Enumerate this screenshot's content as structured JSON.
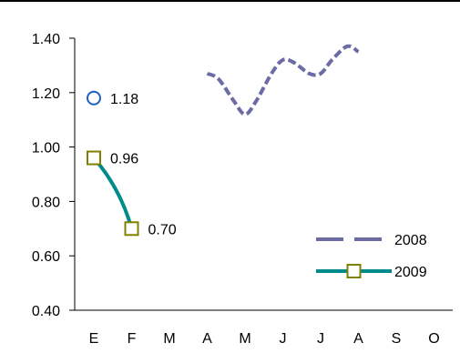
{
  "chart_data": {
    "type": "line",
    "categories": [
      "E",
      "F",
      "M",
      "A",
      "M",
      "J",
      "J",
      "A",
      "S",
      "O"
    ],
    "ylim": [
      0.4,
      1.4
    ],
    "yticks": [
      "0.40",
      "0.60",
      "0.80",
      "1.00",
      "1.20",
      "1.40"
    ],
    "grid": false,
    "legend_position": "bottom-right",
    "series": [
      {
        "name": "2008",
        "style": "dashed",
        "color": "#6b6ba6",
        "x": [
          3,
          3.3,
          3.7,
          4.0,
          4.3,
          4.7,
          5.0,
          5.3,
          5.7,
          6.0,
          6.3,
          6.7,
          7.0
        ],
        "values": [
          1.27,
          1.25,
          1.17,
          1.12,
          1.17,
          1.27,
          1.32,
          1.31,
          1.27,
          1.27,
          1.32,
          1.37,
          1.35
        ]
      },
      {
        "name": "2009",
        "style": "solid",
        "color": "#008b8b",
        "marker": "square",
        "marker_color": "#808000",
        "x": [
          0,
          1
        ],
        "values": [
          0.96,
          0.7
        ],
        "labels": [
          "0.96",
          "0.70"
        ]
      }
    ],
    "extra_points": [
      {
        "x": 0,
        "value": 1.18,
        "label": "1.18",
        "marker": "circle",
        "color": "#1f5fbf"
      }
    ]
  }
}
